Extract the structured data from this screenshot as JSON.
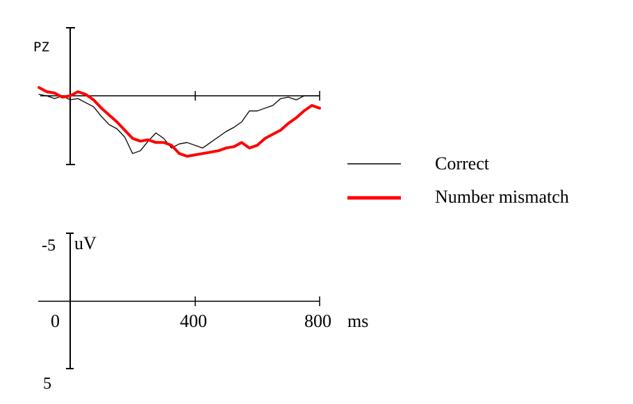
{
  "chart_data": {
    "type": "line",
    "channel_label": "PZ",
    "x_unit": "ms",
    "y_unit": "uV",
    "xlim": [
      -100,
      800
    ],
    "ylim": [
      5,
      -5
    ],
    "y_inverted": true,
    "x_ticks": [
      0,
      400,
      800
    ],
    "x_tick_labels": [
      "0",
      "400",
      "800"
    ],
    "y_ticks": [
      -5,
      5
    ],
    "y_tick_labels": [
      "-5",
      "5"
    ],
    "legend_placement": "right",
    "series": [
      {
        "name": "Correct",
        "color": "#000000",
        "x": [
          -100,
          -75,
          -50,
          -25,
          0,
          25,
          50,
          75,
          100,
          125,
          150,
          175,
          200,
          225,
          250,
          275,
          300,
          325,
          350,
          375,
          400,
          425,
          450,
          475,
          500,
          525,
          550,
          575,
          600,
          625,
          650,
          675,
          700,
          725,
          750,
          775,
          800
        ],
        "y": [
          -0.1,
          0.0,
          0.2,
          0.0,
          0.3,
          0.2,
          0.5,
          0.8,
          1.5,
          2.1,
          2.4,
          3.0,
          4.2,
          4.0,
          3.3,
          2.7,
          3.1,
          3.8,
          3.5,
          3.4,
          3.6,
          3.8,
          3.4,
          3.0,
          2.6,
          2.3,
          1.9,
          1.1,
          1.1,
          0.9,
          0.7,
          0.2,
          0.1,
          0.3,
          0.0,
          0.0,
          0.0
        ]
      },
      {
        "name": "Number mismatch",
        "color": "#ff0000",
        "x": [
          -100,
          -75,
          -50,
          -25,
          0,
          25,
          50,
          75,
          100,
          125,
          150,
          175,
          200,
          225,
          250,
          275,
          300,
          325,
          350,
          375,
          400,
          425,
          450,
          475,
          500,
          525,
          550,
          575,
          600,
          625,
          650,
          675,
          700,
          725,
          750,
          775,
          800
        ],
        "y": [
          -0.6,
          -0.3,
          -0.2,
          0.1,
          0.0,
          -0.3,
          -0.1,
          0.3,
          0.9,
          1.4,
          1.9,
          2.5,
          3.1,
          3.3,
          3.2,
          3.4,
          3.4,
          3.6,
          4.2,
          4.4,
          4.3,
          4.2,
          4.1,
          4.0,
          3.8,
          3.7,
          3.4,
          3.8,
          3.6,
          3.1,
          2.8,
          2.5,
          2.0,
          1.6,
          1.1,
          0.7,
          0.9
        ]
      }
    ]
  }
}
